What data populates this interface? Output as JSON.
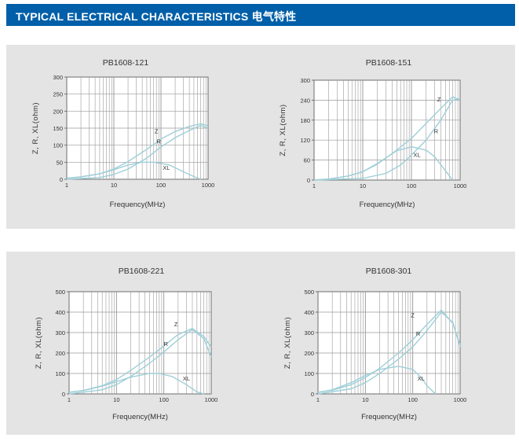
{
  "header": {
    "title": "TYPICAL ELECTRICAL CHARACTERISTICS 电气特性"
  },
  "colors": {
    "header_bg": "#005fa8",
    "panel_bg": "#e4e4e4",
    "curve": "#9ecfd8",
    "grid": "#9a9a9a"
  },
  "chart_data": [
    {
      "type": "line",
      "title": "PB1608-121",
      "xlabel": "Frequency(MHz)",
      "ylabel": "Z, R, XL(ohm)",
      "xscale": "log",
      "xlim": [
        1,
        1000
      ],
      "xticks": [
        "1",
        "10",
        "100",
        "1000"
      ],
      "ylim": [
        0,
        300
      ],
      "yticks": [
        "0",
        "50",
        "100",
        "150",
        "200",
        "250",
        "300"
      ],
      "grid": true,
      "series": [
        {
          "name": "Z",
          "x": [
            1,
            2,
            5,
            10,
            20,
            50,
            100,
            200,
            400,
            700,
            1000
          ],
          "y": [
            3,
            7,
            16,
            30,
            52,
            88,
            118,
            140,
            155,
            163,
            157
          ]
        },
        {
          "name": "R",
          "x": [
            1,
            5,
            10,
            20,
            50,
            100,
            200,
            400,
            700,
            1000
          ],
          "y": [
            0,
            5,
            14,
            30,
            62,
            95,
            122,
            143,
            158,
            150
          ]
        },
        {
          "name": "XL",
          "x": [
            1,
            2,
            5,
            10,
            20,
            40,
            70,
            150,
            300,
            500,
            700
          ],
          "y": [
            3,
            7,
            16,
            28,
            42,
            50,
            50,
            42,
            22,
            8,
            0
          ]
        }
      ],
      "labels": [
        {
          "text": "Z",
          "x": 80,
          "y": 135
        },
        {
          "text": "R",
          "x": 90,
          "y": 105
        },
        {
          "text": "XL",
          "x": 130,
          "y": 28
        }
      ]
    },
    {
      "type": "line",
      "title": "PB1608-151",
      "xlabel": "Frequency(MHz)",
      "ylabel": "Z, R, XL(ohm)",
      "xscale": "log",
      "xlim": [
        1,
        1000
      ],
      "xticks": [
        "1",
        "10",
        "100",
        "1000"
      ],
      "ylim": [
        0,
        300
      ],
      "yticks": [
        "0",
        "60",
        "120",
        "180",
        "240",
        "300"
      ],
      "grid": true,
      "series": [
        {
          "name": "Z",
          "x": [
            1,
            2,
            5,
            10,
            20,
            50,
            100,
            200,
            400,
            700,
            1000
          ],
          "y": [
            0,
            3,
            12,
            25,
            48,
            90,
            125,
            170,
            215,
            250,
            240
          ]
        },
        {
          "name": "R",
          "x": [
            1,
            10,
            30,
            60,
            100,
            200,
            400,
            700,
            1000
          ],
          "y": [
            0,
            5,
            20,
            45,
            75,
            120,
            180,
            240,
            245
          ]
        },
        {
          "name": "XL",
          "x": [
            1,
            2,
            5,
            10,
            20,
            50,
            100,
            200,
            300,
            500,
            700
          ],
          "y": [
            0,
            3,
            12,
            25,
            50,
            88,
            100,
            90,
            70,
            28,
            0
          ]
        }
      ],
      "labels": [
        {
          "text": "Z",
          "x": 370,
          "y": 236
        },
        {
          "text": "R",
          "x": 320,
          "y": 140
        },
        {
          "text": "XL",
          "x": 130,
          "y": 70
        }
      ]
    },
    {
      "type": "line",
      "title": "PB1608-221",
      "xlabel": "Frequency(MHz)",
      "ylabel": "Z, R, XL(ohm)",
      "xscale": "log",
      "xlim": [
        1,
        1000
      ],
      "xticks": [
        "1",
        "10",
        "100",
        "1000"
      ],
      "ylim": [
        0,
        500
      ],
      "yticks": [
        "0",
        "100",
        "200",
        "300",
        "400",
        "500"
      ],
      "grid": true,
      "series": [
        {
          "name": "Z",
          "x": [
            1,
            2,
            5,
            10,
            20,
            50,
            100,
            200,
            400,
            700,
            1000
          ],
          "y": [
            8,
            17,
            40,
            70,
            115,
            180,
            235,
            290,
            320,
            280,
            230
          ]
        },
        {
          "name": "R",
          "x": [
            1,
            5,
            10,
            20,
            50,
            100,
            200,
            400,
            700,
            1000
          ],
          "y": [
            0,
            20,
            45,
            85,
            150,
            205,
            265,
            315,
            270,
            180
          ]
        },
        {
          "name": "XL",
          "x": [
            1,
            2,
            5,
            10,
            20,
            50,
            80,
            150,
            300,
            500,
            700
          ],
          "y": [
            8,
            16,
            38,
            60,
            82,
            100,
            100,
            85,
            45,
            10,
            0
          ]
        }
      ],
      "labels": [
        {
          "text": "Z",
          "x": 180,
          "y": 330
        },
        {
          "text": "R",
          "x": 110,
          "y": 235
        },
        {
          "text": "XL",
          "x": 300,
          "y": 65
        }
      ]
    },
    {
      "type": "line",
      "title": "PB1608-301",
      "xlabel": "Frequency(MHz)",
      "ylabel": "Z, R, XL(ohm)",
      "xscale": "log",
      "xlim": [
        1,
        1000
      ],
      "xticks": [
        "1",
        "10",
        "100",
        "1000"
      ],
      "ylim": [
        0,
        500
      ],
      "yticks": [
        "0",
        "100",
        "200",
        "300",
        "400",
        "500"
      ],
      "grid": true,
      "series": [
        {
          "name": "Z",
          "x": [
            1,
            2,
            5,
            10,
            20,
            50,
            100,
            200,
            400,
            700,
            1000
          ],
          "y": [
            8,
            18,
            45,
            80,
            125,
            200,
            265,
            340,
            410,
            345,
            240
          ]
        },
        {
          "name": "R",
          "x": [
            1,
            5,
            10,
            20,
            50,
            100,
            200,
            400,
            700,
            1000
          ],
          "y": [
            0,
            25,
            55,
            100,
            170,
            230,
            310,
            400,
            350,
            230
          ]
        },
        {
          "name": "XL",
          "x": [
            1,
            2,
            5,
            10,
            20,
            50,
            100,
            150,
            200,
            300
          ],
          "y": [
            8,
            20,
            55,
            90,
            120,
            135,
            120,
            80,
            40,
            0
          ]
        }
      ],
      "labels": [
        {
          "text": "Z",
          "x": 100,
          "y": 375
        },
        {
          "text": "R",
          "x": 130,
          "y": 285
        },
        {
          "text": "XL",
          "x": 150,
          "y": 65
        }
      ]
    }
  ]
}
